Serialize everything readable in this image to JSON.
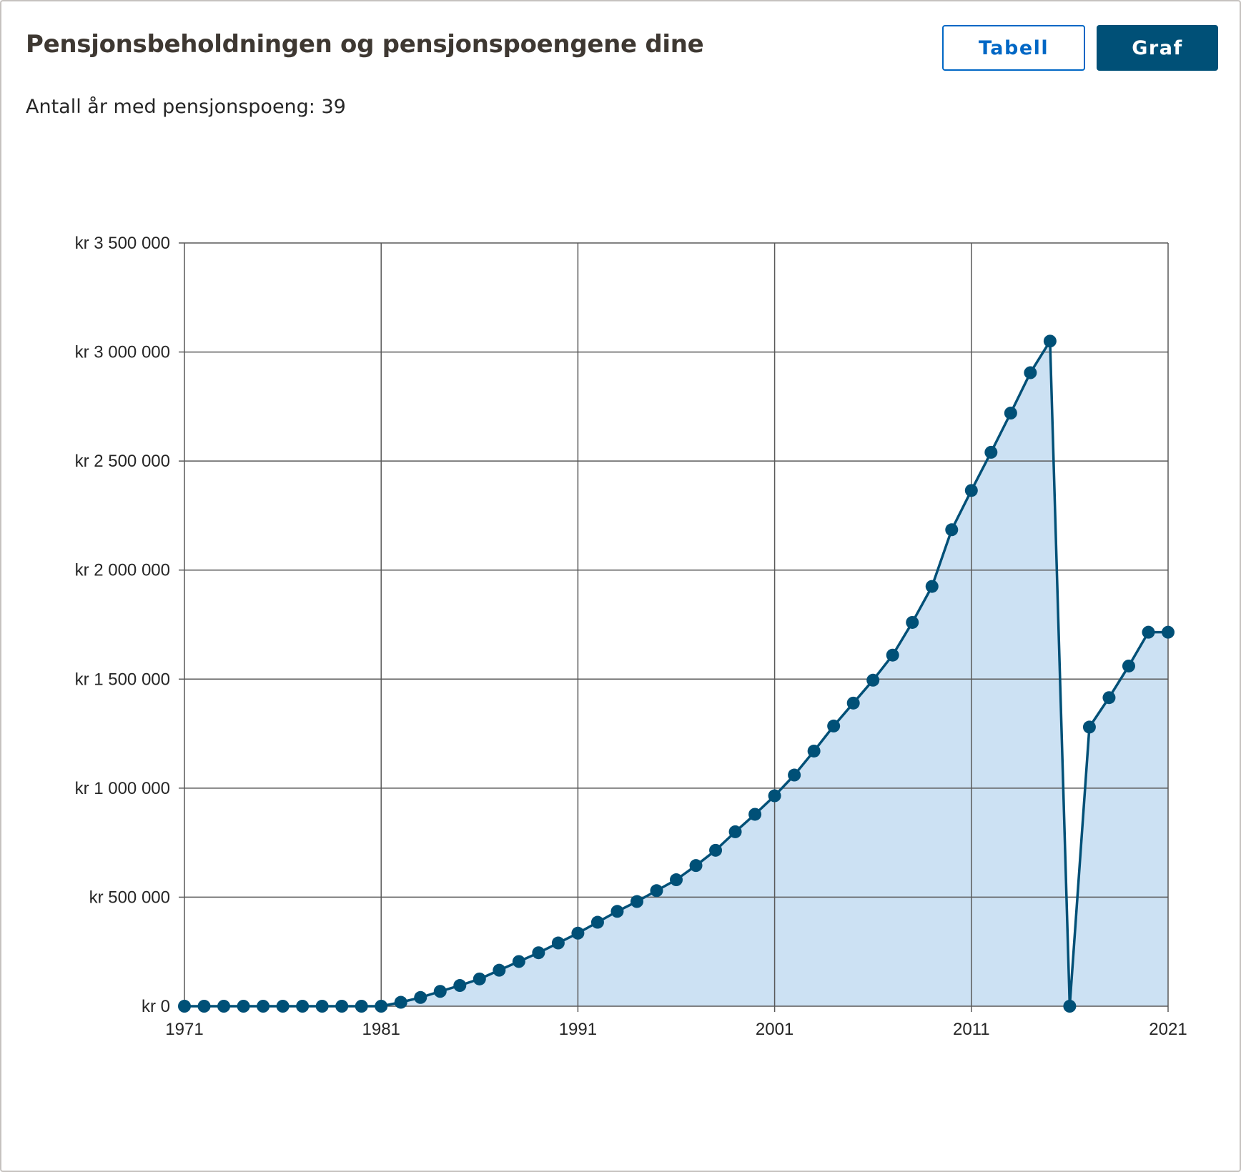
{
  "header": {
    "title": "Pensjonsbeholdningen og pensjonspoengene dine",
    "subtitle": "Antall år med pensjonspoeng: 39"
  },
  "view_toggle": {
    "table_label": "Tabell",
    "graph_label": "Graf",
    "selected": "Graf"
  },
  "colors": {
    "line": "#005077",
    "area": "#cce1f3",
    "grid": "#595959",
    "table_button": "#0067c5",
    "graph_button": "#005077"
  },
  "chart_data": {
    "type": "area",
    "title": "",
    "xlabel": "",
    "ylabel": "",
    "grid": true,
    "xlim": [
      1971,
      2021
    ],
    "ylim": [
      0,
      3500000
    ],
    "x_ticks": [
      1971,
      1981,
      1991,
      2001,
      2011,
      2021
    ],
    "x_tick_labels": [
      "1971",
      "1981",
      "1991",
      "2001",
      "2011",
      "2021"
    ],
    "y_ticks": [
      0,
      500000,
      1000000,
      1500000,
      2000000,
      2500000,
      3000000,
      3500000
    ],
    "y_tick_labels": [
      "kr 0",
      "kr 500 000",
      "kr 1 000 000",
      "kr 1 500 000",
      "kr 2 000 000",
      "kr 2 500 000",
      "kr 3 000 000",
      "kr 3 500 000"
    ],
    "x": [
      1971,
      1972,
      1973,
      1974,
      1975,
      1976,
      1977,
      1978,
      1979,
      1980,
      1981,
      1982,
      1983,
      1984,
      1985,
      1986,
      1987,
      1988,
      1989,
      1990,
      1991,
      1992,
      1993,
      1994,
      1995,
      1996,
      1997,
      1998,
      1999,
      2000,
      2001,
      2002,
      2003,
      2004,
      2005,
      2006,
      2007,
      2008,
      2009,
      2010,
      2011,
      2012,
      2013,
      2014,
      2015,
      2016,
      2017,
      2018,
      2019,
      2020,
      2021
    ],
    "series": [
      {
        "values": [
          0,
          0,
          0,
          0,
          0,
          0,
          0,
          0,
          0,
          0,
          0,
          18000,
          40000,
          68000,
          95000,
          125000,
          165000,
          205000,
          245000,
          290000,
          335000,
          385000,
          435000,
          480000,
          530000,
          580000,
          645000,
          715000,
          800000,
          880000,
          965000,
          1060000,
          1170000,
          1285000,
          1390000,
          1495000,
          1610000,
          1760000,
          1925000,
          2185000,
          2365000,
          2540000,
          2720000,
          2905000,
          3050000,
          0,
          1280000,
          1415000,
          1560000,
          1715000,
          1715000
        ]
      }
    ]
  }
}
